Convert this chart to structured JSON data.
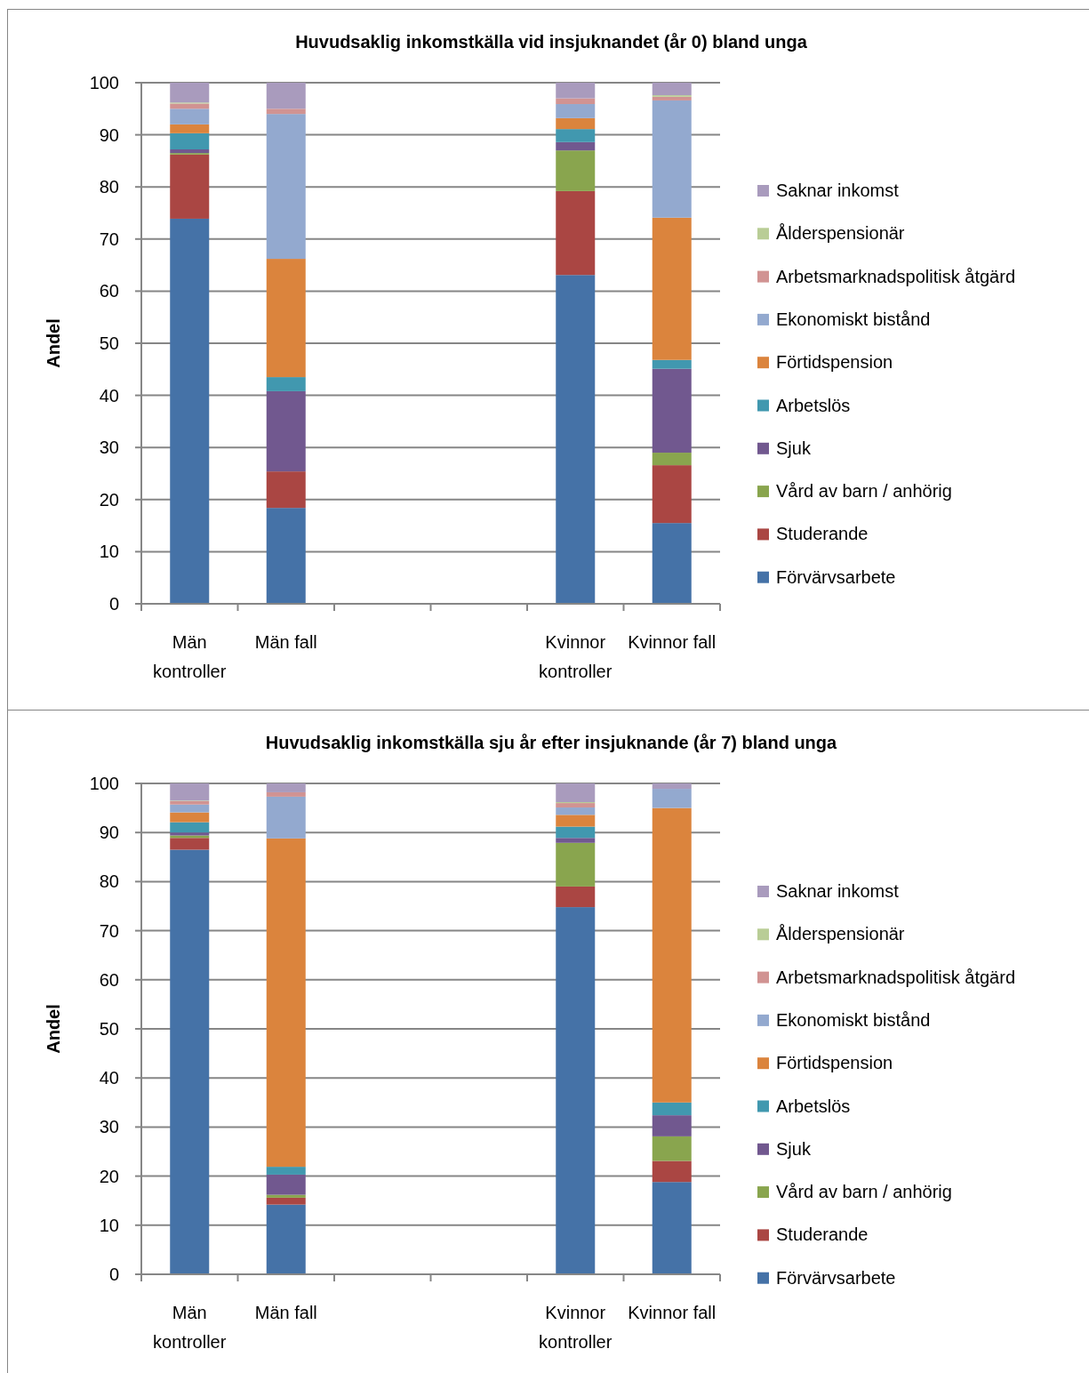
{
  "chart_data": [
    {
      "type": "bar",
      "stacked": true,
      "title": "Huvudsaklig inkomstkälla vid insjuknandet (år 0) bland unga",
      "ylabel": "Andel",
      "categories": [
        "Män kontroller",
        "Män fall",
        null,
        null,
        "Kvinnor kontroller",
        "Kvinnor fall"
      ],
      "ylim": [
        0,
        100
      ],
      "yticks": [
        0,
        10,
        20,
        30,
        40,
        50,
        60,
        70,
        80,
        90,
        100
      ],
      "grid": "y",
      "legend": "right",
      "series": [
        {
          "name": "Förvärvsarbete",
          "color": "#4572a7",
          "values": [
            73.9,
            18.4,
            null,
            null,
            63.1,
            15.5
          ]
        },
        {
          "name": "Studerande",
          "color": "#aa4643",
          "values": [
            12.3,
            7.0,
            null,
            null,
            16.1,
            11.1
          ]
        },
        {
          "name": "Vård av barn / anhörig",
          "color": "#89a54e",
          "values": [
            0.3,
            0,
            null,
            null,
            7.8,
            2.4
          ]
        },
        {
          "name": "Sjuk",
          "color": "#71588f",
          "values": [
            0.7,
            15.4,
            null,
            null,
            1.6,
            16.1
          ]
        },
        {
          "name": "Arbetslös",
          "color": "#4198af",
          "values": [
            3.1,
            2.7,
            null,
            null,
            2.5,
            1.7
          ]
        },
        {
          "name": "Förtidspension",
          "color": "#db843d",
          "values": [
            1.7,
            22.7,
            null,
            null,
            2.1,
            27.3
          ]
        },
        {
          "name": "Ekonomiskt bistånd",
          "color": "#93a9cf",
          "values": [
            3.0,
            27.8,
            null,
            null,
            2.7,
            22.5
          ]
        },
        {
          "name": "Arbetsmarknadspolitisk åtgärd",
          "color": "#d19392",
          "values": [
            1.0,
            1.0,
            null,
            null,
            1.1,
            0.7
          ]
        },
        {
          "name": "Ålderspensionär",
          "color": "#b9cd96",
          "values": [
            0.2,
            0,
            null,
            null,
            0,
            0.3
          ]
        },
        {
          "name": "Saknar inkomst",
          "color": "#a99bbd",
          "values": [
            3.8,
            5.0,
            null,
            null,
            3.0,
            2.4
          ]
        }
      ]
    },
    {
      "type": "bar",
      "stacked": true,
      "title": "Huvudsaklig inkomstkälla sju år efter insjuknande (år 7) bland unga",
      "ylabel": "Andel",
      "categories": [
        "Män kontroller",
        "Män fall",
        null,
        null,
        "Kvinnor kontroller",
        "Kvinnor fall"
      ],
      "ylim": [
        0,
        100
      ],
      "yticks": [
        0,
        10,
        20,
        30,
        40,
        50,
        60,
        70,
        80,
        90,
        100
      ],
      "grid": "y",
      "legend": "right",
      "series": [
        {
          "name": "Förvärvsarbete",
          "color": "#4572a7",
          "values": [
            86.5,
            14.2,
            null,
            null,
            74.8,
            18.8
          ]
        },
        {
          "name": "Studerande",
          "color": "#aa4643",
          "values": [
            2.4,
            1.4,
            null,
            null,
            4.2,
            4.3
          ]
        },
        {
          "name": "Vård av barn / anhörig",
          "color": "#89a54e",
          "values": [
            0.5,
            0.6,
            null,
            null,
            8.9,
            5.0
          ]
        },
        {
          "name": "Sjuk",
          "color": "#71588f",
          "values": [
            0.6,
            4.1,
            null,
            null,
            1.0,
            4.3
          ]
        },
        {
          "name": "Arbetslös",
          "color": "#4198af",
          "values": [
            2.1,
            1.6,
            null,
            null,
            2.3,
            2.6
          ]
        },
        {
          "name": "Förtidspension",
          "color": "#db843d",
          "values": [
            2.0,
            66.9,
            null,
            null,
            2.4,
            60.0
          ]
        },
        {
          "name": "Ekonomiskt bistånd",
          "color": "#93a9cf",
          "values": [
            1.6,
            8.5,
            null,
            null,
            1.5,
            3.9
          ]
        },
        {
          "name": "Arbetsmarknadspolitisk åtgärd",
          "color": "#d19392",
          "values": [
            0.7,
            0.9,
            null,
            null,
            0.9,
            0
          ]
        },
        {
          "name": "Ålderspensionär",
          "color": "#b9cd96",
          "values": [
            0.1,
            0,
            null,
            null,
            0.2,
            0
          ]
        },
        {
          "name": "Saknar inkomst",
          "color": "#a99bbd",
          "values": [
            3.5,
            1.8,
            null,
            null,
            3.8,
            1.1
          ]
        }
      ]
    }
  ]
}
